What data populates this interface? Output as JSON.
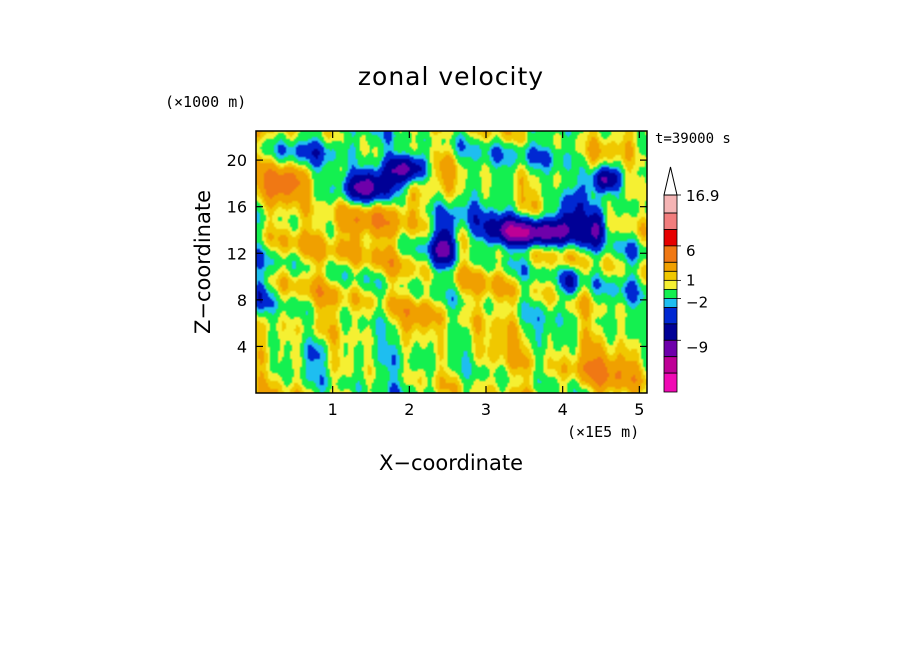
{
  "chart_data": {
    "type": "heatmap",
    "title": "zonal velocity",
    "xlabel": "X−coordinate",
    "ylabel": "Z−coordinate",
    "x_scale_note": "(×1E5 m)",
    "y_scale_note": "(×1000 m)",
    "time_label": "t=39000 s",
    "xlim": [
      0,
      5.1
    ],
    "ylim": [
      0,
      22.5
    ],
    "x_ticks": [
      1,
      2,
      3,
      4,
      5
    ],
    "x_tick_labels": [
      "1",
      "2",
      "3",
      "4",
      "5"
    ],
    "y_ticks": [
      4,
      8,
      12,
      16,
      20
    ],
    "y_tick_labels": [
      "4",
      "8",
      "12",
      "16",
      "20"
    ],
    "colorbar": {
      "labels": [
        {
          "value": 16.9,
          "text": "16.9"
        },
        {
          "value": 6,
          "text": "6"
        },
        {
          "value": 1,
          "text": "1"
        },
        {
          "value": -2,
          "text": "−2"
        },
        {
          "value": -9,
          "text": "−9"
        }
      ],
      "max_value": 16.9,
      "extend": "max",
      "colors": [
        "#f5b4b4",
        "#f27d7d",
        "#e60000",
        "#f07814",
        "#f0a000",
        "#f0c800",
        "#f5f032",
        "#14f050",
        "#1ebef0",
        "#0028d2",
        "#000096",
        "#6e00aa",
        "#be0096",
        "#f00ab4"
      ]
    },
    "features": [
      {
        "x": 1.45,
        "z": 17.6,
        "value": -9,
        "sx": 0.24,
        "sz": 1.0
      },
      {
        "x": 2.0,
        "z": 19.3,
        "value": -9,
        "sx": 0.2,
        "sz": 0.9
      },
      {
        "x": 3.5,
        "z": 13.7,
        "value": -9,
        "sx": 0.42,
        "sz": 0.9
      },
      {
        "x": 4.1,
        "z": 15.2,
        "value": -5,
        "sx": 0.14,
        "sz": 1.3
      },
      {
        "x": 4.55,
        "z": 18.3,
        "value": -8,
        "sx": 0.13,
        "sz": 0.8
      },
      {
        "x": 4.45,
        "z": 14.5,
        "value": -6,
        "sx": 0.1,
        "sz": 1.1
      },
      {
        "x": 2.5,
        "z": 13.0,
        "value": -5,
        "sx": 0.08,
        "sz": 1.5
      },
      {
        "x": 2.35,
        "z": 12.0,
        "value": -3,
        "sx": 0.1,
        "sz": 1.6
      },
      {
        "x": 4.1,
        "z": 9.5,
        "value": -5,
        "sx": 0.07,
        "sz": 1.0
      },
      {
        "x": 0.35,
        "z": 18.0,
        "value": 6,
        "sx": 0.22,
        "sz": 1.0
      },
      {
        "x": 1.3,
        "z": 14.5,
        "value": 4,
        "sx": 0.35,
        "sz": 1.6
      },
      {
        "x": 2.0,
        "z": 16.5,
        "value": 3,
        "sx": 0.2,
        "sz": 2.0
      },
      {
        "x": 2.3,
        "z": 19.2,
        "value": 3,
        "sx": 0.28,
        "sz": 1.0
      },
      {
        "x": 3.0,
        "z": 9.0,
        "value": 1.5,
        "sx": 0.6,
        "sz": 2.5
      },
      {
        "x": 4.8,
        "z": 21.5,
        "value": 3,
        "sx": 0.25,
        "sz": 1.0
      },
      {
        "x": 4.6,
        "z": 2.0,
        "value": 4,
        "sx": 0.45,
        "sz": 1.5
      },
      {
        "x": 1.0,
        "z": 8.5,
        "value": 1.5,
        "sx": 0.4,
        "sz": 4.0
      },
      {
        "x": 3.3,
        "z": 3.5,
        "value": 2,
        "sx": 0.3,
        "sz": 1.3
      },
      {
        "x": 2.1,
        "z": 6.5,
        "value": 3,
        "sx": 0.15,
        "sz": 1.2
      },
      {
        "x": 0.9,
        "z": 21.0,
        "value": -2.5,
        "sx": 0.45,
        "sz": 0.9
      },
      {
        "x": 3.5,
        "z": 20.5,
        "value": -2,
        "sx": 0.45,
        "sz": 1.0
      },
      {
        "x": 2.7,
        "z": 15.5,
        "value": -1.5,
        "sx": 0.35,
        "sz": 1.2
      },
      {
        "x": 1.7,
        "z": 2.5,
        "value": -0.5,
        "sx": 0.6,
        "sz": 1.8
      },
      {
        "x": 0.8,
        "z": 3.5,
        "value": -1.5,
        "sx": 0.12,
        "sz": 1.0
      },
      {
        "x": 3.8,
        "z": 6.0,
        "value": -0.5,
        "sx": 0.25,
        "sz": 2.5
      },
      {
        "x": 4.9,
        "z": 10.5,
        "value": -1.5,
        "sx": 0.15,
        "sz": 3.0
      },
      {
        "x": 0.05,
        "z": 8.5,
        "value": -3,
        "sx": 0.07,
        "sz": 1.5
      }
    ]
  }
}
